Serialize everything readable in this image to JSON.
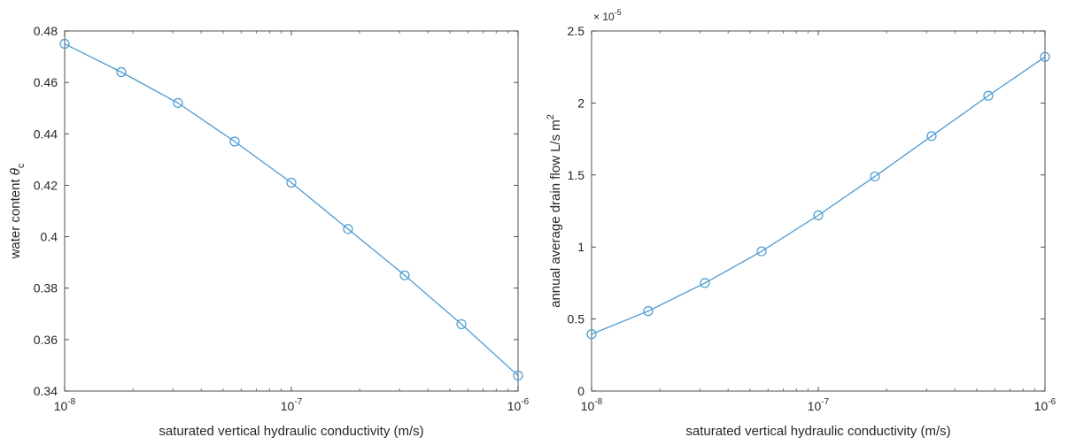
{
  "chart_data": [
    {
      "type": "line",
      "x_scale": "log",
      "x": [
        1e-08,
        1.778e-08,
        3.162e-08,
        5.623e-08,
        1e-07,
        1.778e-07,
        3.162e-07,
        5.623e-07,
        1e-06
      ],
      "series": [
        {
          "values": [
            0.475,
            0.464,
            0.452,
            0.437,
            0.421,
            0.403,
            0.385,
            0.366,
            0.346
          ],
          "color": "#4a9ad1",
          "marker": "circle"
        }
      ],
      "xlim": [
        1e-08,
        1e-06
      ],
      "ylim": [
        0.34,
        0.48
      ],
      "xticks": [
        {
          "value": 1e-08,
          "base": "10",
          "exp": "-8"
        },
        {
          "value": 1e-07,
          "base": "10",
          "exp": "-7"
        },
        {
          "value": 1e-06,
          "base": "10",
          "exp": "-6"
        }
      ],
      "yticks": [
        {
          "value": 0.34,
          "label": "0.34"
        },
        {
          "value": 0.36,
          "label": "0.36"
        },
        {
          "value": 0.38,
          "label": "0.38"
        },
        {
          "value": 0.4,
          "label": "0.4"
        },
        {
          "value": 0.42,
          "label": "0.42"
        },
        {
          "value": 0.44,
          "label": "0.44"
        },
        {
          "value": 0.46,
          "label": "0.46"
        },
        {
          "value": 0.48,
          "label": "0.48"
        }
      ],
      "xlabel": "saturated vertical hydraulic conductivity (m/s)",
      "ylabel": {
        "main": "water content ",
        "symbol": "θ",
        "sub": "c"
      },
      "title": "",
      "grid": false
    },
    {
      "type": "line",
      "x_scale": "log",
      "x": [
        1e-08,
        1.778e-08,
        3.162e-08,
        5.623e-08,
        1e-07,
        1.778e-07,
        3.162e-07,
        5.623e-07,
        1e-06
      ],
      "series": [
        {
          "values": [
            3.95e-06,
            5.55e-06,
            7.5e-06,
            9.7e-06,
            1.22e-05,
            1.49e-05,
            1.77e-05,
            2.05e-05,
            2.32e-05
          ],
          "color": "#4a9ad1",
          "marker": "circle"
        }
      ],
      "xlim": [
        1e-08,
        1e-06
      ],
      "ylim": [
        0,
        2.5e-05
      ],
      "y_multiplier": {
        "prefix": "×",
        "base": "10",
        "exp": "-5"
      },
      "xticks": [
        {
          "value": 1e-08,
          "base": "10",
          "exp": "-8"
        },
        {
          "value": 1e-07,
          "base": "10",
          "exp": "-7"
        },
        {
          "value": 1e-06,
          "base": "10",
          "exp": "-6"
        }
      ],
      "yticks": [
        {
          "value": 0,
          "label": "0"
        },
        {
          "value": 5e-06,
          "label": "0.5"
        },
        {
          "value": 1e-05,
          "label": "1"
        },
        {
          "value": 1.5e-05,
          "label": "1.5"
        },
        {
          "value": 2e-05,
          "label": "2"
        },
        {
          "value": 2.5e-05,
          "label": "2.5"
        }
      ],
      "xlabel": "saturated vertical hydraulic conductivity (m/s)",
      "ylabel": {
        "main": "annual average drain flow L/s m",
        "sup": "2"
      },
      "title": "",
      "grid": false
    }
  ]
}
